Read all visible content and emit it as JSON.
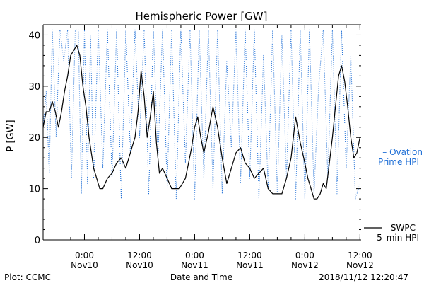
{
  "chart_data": {
    "type": "line",
    "title": "Hemispheric Power [GW]",
    "ylabel": "P [GW]",
    "xlabel": "Date and Time",
    "ylim": [
      0,
      42
    ],
    "y_ticks": [
      0,
      10,
      20,
      30,
      40
    ],
    "xlim": [
      "2018-11-09 15:00",
      "2018-11-12 12:15"
    ],
    "x_ticks": [
      {
        "time": "2018-11-10 00:00",
        "line1": "0:00",
        "line2": "Nov10"
      },
      {
        "time": "2018-11-10 12:00",
        "line1": "12:00",
        "line2": "Nov10"
      },
      {
        "time": "2018-11-11 00:00",
        "line1": "0:00",
        "line2": "Nov11"
      },
      {
        "time": "2018-11-11 12:00",
        "line1": "12:00",
        "line2": "Nov11"
      },
      {
        "time": "2018-11-12 00:00",
        "line1": "0:00",
        "line2": "Nov12"
      },
      {
        "time": "2018-11-12 12:00",
        "line1": "12:00",
        "line2": "Nov12"
      }
    ],
    "legend_position": "right",
    "grid": false,
    "series": [
      {
        "name": "Ovation Prime HPI",
        "legend_text": [
          "– Ovation",
          "Prime HPI"
        ],
        "style": "dotted",
        "color": "#1f6fd6",
        "x": [
          "2018-11-09 15:00",
          "2018-11-09 15:40",
          "2018-11-09 16:20",
          "2018-11-09 17:00",
          "2018-11-09 17:50",
          "2018-11-09 18:40",
          "2018-11-09 19:30",
          "2018-11-09 20:20",
          "2018-11-09 21:10",
          "2018-11-09 22:00",
          "2018-11-09 22:40",
          "2018-11-09 23:20",
          "2018-11-10 00:00",
          "2018-11-10 00:40",
          "2018-11-10 01:20",
          "2018-11-10 02:00",
          "2018-11-10 03:00",
          "2018-11-10 04:00",
          "2018-11-10 05:00",
          "2018-11-10 06:00",
          "2018-11-10 07:00",
          "2018-11-10 08:00",
          "2018-11-10 09:00",
          "2018-11-10 10:00",
          "2018-11-10 11:00",
          "2018-11-10 12:00",
          "2018-11-10 13:00",
          "2018-11-10 14:00",
          "2018-11-10 15:00",
          "2018-11-10 16:00",
          "2018-11-10 17:00",
          "2018-11-10 18:00",
          "2018-11-10 19:00",
          "2018-11-10 20:00",
          "2018-11-10 21:00",
          "2018-11-10 22:00",
          "2018-11-10 23:00",
          "2018-11-11 00:00",
          "2018-11-11 01:00",
          "2018-11-11 02:00",
          "2018-11-11 03:00",
          "2018-11-11 04:00",
          "2018-11-11 05:00",
          "2018-11-11 06:00",
          "2018-11-11 07:00",
          "2018-11-11 08:00",
          "2018-11-11 09:00",
          "2018-11-11 10:00",
          "2018-11-11 11:00",
          "2018-11-11 12:00",
          "2018-11-11 13:00",
          "2018-11-11 14:00",
          "2018-11-11 15:00",
          "2018-11-11 16:00",
          "2018-11-11 17:00",
          "2018-11-11 18:00",
          "2018-11-11 19:00",
          "2018-11-11 20:00",
          "2018-11-11 21:00",
          "2018-11-11 22:00",
          "2018-11-11 23:00",
          "2018-11-12 00:00",
          "2018-11-12 01:00",
          "2018-11-12 02:00",
          "2018-11-12 03:00",
          "2018-11-12 04:00",
          "2018-11-12 05:00",
          "2018-11-12 06:00",
          "2018-11-12 07:00",
          "2018-11-12 08:00",
          "2018-11-12 09:00",
          "2018-11-12 10:00",
          "2018-11-12 11:00",
          "2018-11-12 12:00"
        ],
        "values": [
          22,
          29,
          13,
          41,
          20,
          41,
          35,
          41,
          12,
          41,
          41,
          9,
          41,
          11,
          40,
          12,
          41,
          14,
          41,
          12,
          41,
          8,
          41,
          17,
          41,
          20,
          41,
          9,
          41,
          16,
          41,
          10,
          41,
          8,
          41,
          15,
          41,
          8,
          41,
          12,
          41,
          10,
          41,
          9,
          35,
          18,
          41,
          11,
          41,
          12,
          41,
          8,
          36,
          10,
          41,
          9,
          40,
          12,
          41,
          8,
          41,
          8,
          41,
          9,
          30,
          41,
          12,
          41,
          9,
          41,
          14,
          36,
          8,
          11
        ]
      },
      {
        "name": "SWPC 5-min HPI",
        "legend_text": [
          "SWPC",
          "5–min HPI"
        ],
        "style": "solid",
        "color": "#000000",
        "x": [
          "2018-11-09 15:00",
          "2018-11-09 15:40",
          "2018-11-09 16:20",
          "2018-11-09 17:00",
          "2018-11-09 17:40",
          "2018-11-09 18:20",
          "2018-11-09 19:00",
          "2018-11-09 19:40",
          "2018-11-09 20:20",
          "2018-11-09 21:00",
          "2018-11-09 21:40",
          "2018-11-09 22:20",
          "2018-11-09 23:00",
          "2018-11-09 23:40",
          "2018-11-10 00:20",
          "2018-11-10 01:00",
          "2018-11-10 02:00",
          "2018-11-10 02:40",
          "2018-11-10 03:20",
          "2018-11-10 04:00",
          "2018-11-10 05:00",
          "2018-11-10 06:00",
          "2018-11-10 07:00",
          "2018-11-10 08:00",
          "2018-11-10 09:00",
          "2018-11-10 09:40",
          "2018-11-10 10:20",
          "2018-11-10 11:00",
          "2018-11-10 11:40",
          "2018-11-10 12:20",
          "2018-11-10 13:00",
          "2018-11-10 13:40",
          "2018-11-10 14:20",
          "2018-11-10 15:00",
          "2018-11-10 15:40",
          "2018-11-10 16:20",
          "2018-11-10 17:00",
          "2018-11-10 18:00",
          "2018-11-10 19:00",
          "2018-11-10 20:00",
          "2018-11-10 20:40",
          "2018-11-10 21:20",
          "2018-11-10 22:00",
          "2018-11-10 22:40",
          "2018-11-10 23:20",
          "2018-11-11 00:00",
          "2018-11-11 00:40",
          "2018-11-11 01:20",
          "2018-11-11 02:00",
          "2018-11-11 03:00",
          "2018-11-11 04:00",
          "2018-11-11 05:00",
          "2018-11-11 06:00",
          "2018-11-11 07:00",
          "2018-11-11 08:00",
          "2018-11-11 09:00",
          "2018-11-11 10:00",
          "2018-11-11 11:00",
          "2018-11-11 12:00",
          "2018-11-11 13:00",
          "2018-11-11 14:00",
          "2018-11-11 15:00",
          "2018-11-11 16:00",
          "2018-11-11 17:00",
          "2018-11-11 18:00",
          "2018-11-11 19:00",
          "2018-11-11 20:00",
          "2018-11-11 21:00",
          "2018-11-11 22:00",
          "2018-11-11 23:00",
          "2018-11-12 00:00",
          "2018-11-12 00:40",
          "2018-11-12 01:20",
          "2018-11-12 02:00",
          "2018-11-12 02:40",
          "2018-11-12 03:20",
          "2018-11-12 04:00",
          "2018-11-12 04:40",
          "2018-11-12 05:20",
          "2018-11-12 06:00",
          "2018-11-12 06:40",
          "2018-11-12 07:20",
          "2018-11-12 08:00",
          "2018-11-12 08:40",
          "2018-11-12 09:20",
          "2018-11-12 10:00",
          "2018-11-12 10:40",
          "2018-11-12 11:20",
          "2018-11-12 12:00"
        ],
        "values": [
          22,
          25,
          25,
          27,
          25,
          22,
          25,
          29,
          32,
          36,
          37,
          38,
          36,
          30,
          26,
          20,
          14,
          12,
          10,
          10,
          12,
          13,
          15,
          16,
          14,
          16,
          18,
          20,
          25,
          33,
          28,
          20,
          24,
          29,
          19,
          13,
          14,
          12,
          10,
          10,
          10,
          11,
          12,
          15,
          18,
          22,
          24,
          20,
          17,
          21,
          26,
          22,
          16,
          11,
          14,
          17,
          18,
          15,
          14,
          12,
          13,
          14,
          10,
          9,
          9,
          9,
          12,
          16,
          24,
          19,
          15,
          12,
          10,
          8,
          8,
          9,
          11,
          10,
          15,
          20,
          26,
          32,
          34,
          31,
          26,
          20,
          16,
          17,
          20
        ]
      }
    ]
  },
  "footer": {
    "plot_credit": "Plot: CCMC",
    "timestamp": "2018/11/12 12:20:47"
  }
}
